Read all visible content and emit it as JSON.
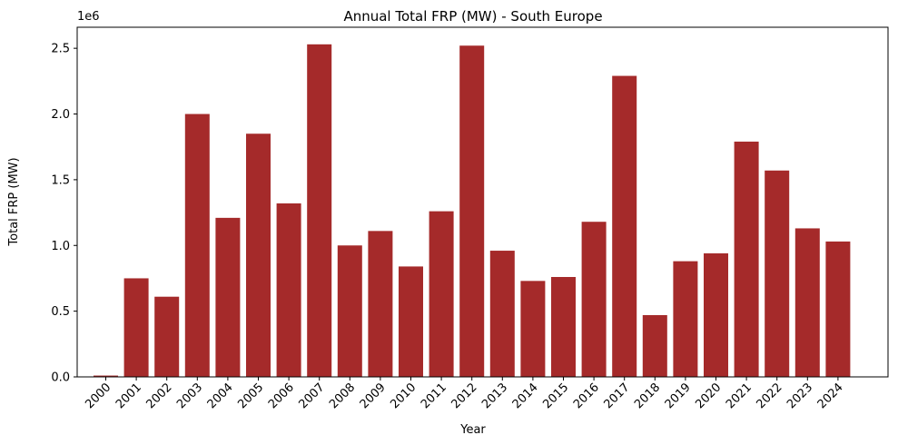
{
  "chart_data": {
    "type": "bar",
    "title": "Annual Total FRP (MW) - South Europe",
    "xlabel": "Year",
    "ylabel": "Total FRP (MW)",
    "offset_label": "1e6",
    "categories": [
      "2000",
      "2001",
      "2002",
      "2003",
      "2004",
      "2005",
      "2006",
      "2007",
      "2008",
      "2009",
      "2010",
      "2011",
      "2012",
      "2013",
      "2014",
      "2015",
      "2016",
      "2017",
      "2018",
      "2019",
      "2020",
      "2021",
      "2022",
      "2023",
      "2024"
    ],
    "values": [
      0.01,
      0.75,
      0.61,
      2.0,
      1.21,
      1.85,
      1.32,
      2.53,
      1.0,
      1.11,
      0.84,
      1.26,
      2.52,
      0.96,
      0.73,
      0.76,
      1.18,
      2.29,
      0.47,
      0.88,
      0.94,
      1.79,
      1.57,
      1.13,
      1.03
    ],
    "yticks": [
      "0.0",
      "0.5",
      "1.0",
      "1.5",
      "2.0",
      "2.5"
    ],
    "ylim": [
      0,
      2.66
    ],
    "bar_color": "#a52a2a",
    "grid": false,
    "legend": "none"
  }
}
